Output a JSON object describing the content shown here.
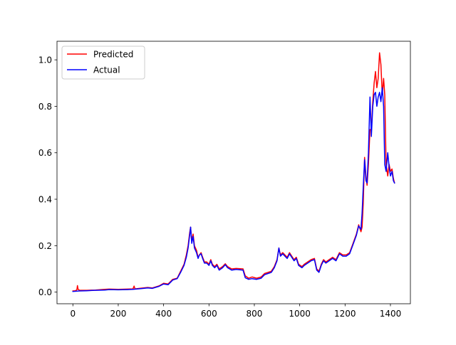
{
  "chart_data": {
    "type": "line",
    "title": "",
    "xlabel": "",
    "ylabel": "",
    "xlim": [
      -70,
      1488
    ],
    "ylim": [
      -0.05,
      1.08
    ],
    "x_ticks": [
      0,
      200,
      400,
      600,
      800,
      1000,
      1200,
      1400
    ],
    "y_ticks": [
      0.0,
      0.2,
      0.4,
      0.6,
      0.8,
      1.0
    ],
    "x_tick_labels": [
      "0",
      "200",
      "400",
      "600",
      "800",
      "1000",
      "1200",
      "1400"
    ],
    "y_tick_labels": [
      "0.0",
      "0.2",
      "0.4",
      "0.6",
      "0.8",
      "1.0"
    ],
    "grid": false,
    "legend_position": "top-left",
    "series": [
      {
        "name": "Predicted",
        "color": "#ff0000",
        "points": [
          [
            0,
            0.005
          ],
          [
            10,
            0.006
          ],
          [
            15,
            0.008
          ],
          [
            18,
            0.012
          ],
          [
            20,
            0.028
          ],
          [
            23,
            0.012
          ],
          [
            26,
            0.01
          ],
          [
            30,
            0.008
          ],
          [
            60,
            0.008
          ],
          [
            100,
            0.009
          ],
          [
            140,
            0.012
          ],
          [
            160,
            0.013
          ],
          [
            200,
            0.012
          ],
          [
            240,
            0.013
          ],
          [
            265,
            0.014
          ],
          [
            270,
            0.026
          ],
          [
            274,
            0.014
          ],
          [
            300,
            0.017
          ],
          [
            330,
            0.02
          ],
          [
            350,
            0.018
          ],
          [
            380,
            0.027
          ],
          [
            400,
            0.038
          ],
          [
            420,
            0.035
          ],
          [
            440,
            0.055
          ],
          [
            460,
            0.06
          ],
          [
            475,
            0.09
          ],
          [
            490,
            0.12
          ],
          [
            500,
            0.16
          ],
          [
            508,
            0.2
          ],
          [
            515,
            0.255
          ],
          [
            519,
            0.28
          ],
          [
            524,
            0.22
          ],
          [
            530,
            0.25
          ],
          [
            536,
            0.2
          ],
          [
            545,
            0.18
          ],
          [
            552,
            0.15
          ],
          [
            558,
            0.16
          ],
          [
            565,
            0.17
          ],
          [
            572,
            0.15
          ],
          [
            580,
            0.13
          ],
          [
            590,
            0.13
          ],
          [
            600,
            0.12
          ],
          [
            608,
            0.14
          ],
          [
            615,
            0.12
          ],
          [
            625,
            0.11
          ],
          [
            635,
            0.12
          ],
          [
            645,
            0.1
          ],
          [
            660,
            0.11
          ],
          [
            672,
            0.122
          ],
          [
            682,
            0.11
          ],
          [
            700,
            0.1
          ],
          [
            720,
            0.102
          ],
          [
            750,
            0.1
          ],
          [
            760,
            0.07
          ],
          [
            775,
            0.06
          ],
          [
            790,
            0.065
          ],
          [
            810,
            0.06
          ],
          [
            830,
            0.065
          ],
          [
            845,
            0.08
          ],
          [
            860,
            0.085
          ],
          [
            875,
            0.09
          ],
          [
            888,
            0.11
          ],
          [
            900,
            0.14
          ],
          [
            908,
            0.19
          ],
          [
            915,
            0.16
          ],
          [
            925,
            0.17
          ],
          [
            935,
            0.16
          ],
          [
            945,
            0.15
          ],
          [
            955,
            0.17
          ],
          [
            965,
            0.155
          ],
          [
            975,
            0.14
          ],
          [
            985,
            0.15
          ],
          [
            995,
            0.12
          ],
          [
            1010,
            0.11
          ],
          [
            1020,
            0.12
          ],
          [
            1035,
            0.13
          ],
          [
            1050,
            0.14
          ],
          [
            1065,
            0.145
          ],
          [
            1075,
            0.1
          ],
          [
            1085,
            0.09
          ],
          [
            1095,
            0.12
          ],
          [
            1105,
            0.14
          ],
          [
            1115,
            0.13
          ],
          [
            1130,
            0.14
          ],
          [
            1145,
            0.15
          ],
          [
            1160,
            0.14
          ],
          [
            1175,
            0.17
          ],
          [
            1190,
            0.16
          ],
          [
            1205,
            0.16
          ],
          [
            1220,
            0.17
          ],
          [
            1235,
            0.21
          ],
          [
            1250,
            0.25
          ],
          [
            1260,
            0.29
          ],
          [
            1270,
            0.26
          ],
          [
            1275,
            0.28
          ],
          [
            1280,
            0.38
          ],
          [
            1286,
            0.58
          ],
          [
            1292,
            0.5
          ],
          [
            1297,
            0.46
          ],
          [
            1303,
            0.55
          ],
          [
            1310,
            0.7
          ],
          [
            1316,
            0.7
          ],
          [
            1322,
            0.82
          ],
          [
            1328,
            0.9
          ],
          [
            1334,
            0.95
          ],
          [
            1340,
            0.88
          ],
          [
            1346,
            0.92
          ],
          [
            1352,
            1.03
          ],
          [
            1358,
            0.98
          ],
          [
            1364,
            0.85
          ],
          [
            1370,
            0.92
          ],
          [
            1375,
            0.85
          ],
          [
            1381,
            0.55
          ],
          [
            1388,
            0.5
          ],
          [
            1394,
            0.55
          ],
          [
            1400,
            0.52
          ],
          [
            1407,
            0.53
          ],
          [
            1413,
            0.49
          ],
          [
            1418,
            0.47
          ]
        ]
      },
      {
        "name": "Actual",
        "color": "#0000ff",
        "points": [
          [
            0,
            0.003
          ],
          [
            30,
            0.005
          ],
          [
            60,
            0.006
          ],
          [
            100,
            0.008
          ],
          [
            140,
            0.009
          ],
          [
            160,
            0.011
          ],
          [
            200,
            0.01
          ],
          [
            240,
            0.011
          ],
          [
            265,
            0.012
          ],
          [
            300,
            0.015
          ],
          [
            330,
            0.018
          ],
          [
            350,
            0.016
          ],
          [
            380,
            0.025
          ],
          [
            400,
            0.035
          ],
          [
            420,
            0.032
          ],
          [
            440,
            0.052
          ],
          [
            460,
            0.058
          ],
          [
            475,
            0.085
          ],
          [
            490,
            0.115
          ],
          [
            500,
            0.15
          ],
          [
            508,
            0.19
          ],
          [
            515,
            0.245
          ],
          [
            519,
            0.28
          ],
          [
            524,
            0.21
          ],
          [
            530,
            0.24
          ],
          [
            536,
            0.19
          ],
          [
            545,
            0.17
          ],
          [
            552,
            0.145
          ],
          [
            558,
            0.16
          ],
          [
            565,
            0.165
          ],
          [
            572,
            0.145
          ],
          [
            580,
            0.125
          ],
          [
            590,
            0.125
          ],
          [
            600,
            0.115
          ],
          [
            608,
            0.135
          ],
          [
            615,
            0.115
          ],
          [
            625,
            0.105
          ],
          [
            635,
            0.115
          ],
          [
            645,
            0.095
          ],
          [
            660,
            0.105
          ],
          [
            672,
            0.118
          ],
          [
            682,
            0.105
          ],
          [
            700,
            0.095
          ],
          [
            720,
            0.098
          ],
          [
            750,
            0.095
          ],
          [
            760,
            0.062
          ],
          [
            775,
            0.055
          ],
          [
            790,
            0.058
          ],
          [
            810,
            0.055
          ],
          [
            830,
            0.06
          ],
          [
            845,
            0.075
          ],
          [
            860,
            0.08
          ],
          [
            875,
            0.085
          ],
          [
            888,
            0.105
          ],
          [
            900,
            0.135
          ],
          [
            908,
            0.19
          ],
          [
            915,
            0.155
          ],
          [
            925,
            0.165
          ],
          [
            935,
            0.155
          ],
          [
            945,
            0.145
          ],
          [
            955,
            0.165
          ],
          [
            965,
            0.15
          ],
          [
            975,
            0.135
          ],
          [
            985,
            0.145
          ],
          [
            995,
            0.115
          ],
          [
            1010,
            0.105
          ],
          [
            1020,
            0.115
          ],
          [
            1035,
            0.125
          ],
          [
            1050,
            0.135
          ],
          [
            1065,
            0.14
          ],
          [
            1075,
            0.095
          ],
          [
            1085,
            0.085
          ],
          [
            1095,
            0.115
          ],
          [
            1105,
            0.135
          ],
          [
            1115,
            0.125
          ],
          [
            1130,
            0.135
          ],
          [
            1145,
            0.145
          ],
          [
            1160,
            0.135
          ],
          [
            1175,
            0.165
          ],
          [
            1190,
            0.155
          ],
          [
            1205,
            0.155
          ],
          [
            1220,
            0.165
          ],
          [
            1235,
            0.205
          ],
          [
            1250,
            0.245
          ],
          [
            1260,
            0.285
          ],
          [
            1270,
            0.27
          ],
          [
            1275,
            0.34
          ],
          [
            1280,
            0.45
          ],
          [
            1286,
            0.57
          ],
          [
            1292,
            0.48
          ],
          [
            1297,
            0.47
          ],
          [
            1303,
            0.6
          ],
          [
            1310,
            0.84
          ],
          [
            1316,
            0.67
          ],
          [
            1322,
            0.8
          ],
          [
            1328,
            0.85
          ],
          [
            1334,
            0.86
          ],
          [
            1340,
            0.8
          ],
          [
            1346,
            0.84
          ],
          [
            1352,
            0.86
          ],
          [
            1358,
            0.82
          ],
          [
            1364,
            0.88
          ],
          [
            1370,
            0.8
          ],
          [
            1375,
            0.55
          ],
          [
            1381,
            0.52
          ],
          [
            1388,
            0.6
          ],
          [
            1394,
            0.54
          ],
          [
            1400,
            0.5
          ],
          [
            1407,
            0.52
          ],
          [
            1413,
            0.48
          ],
          [
            1418,
            0.47
          ]
        ]
      }
    ]
  }
}
